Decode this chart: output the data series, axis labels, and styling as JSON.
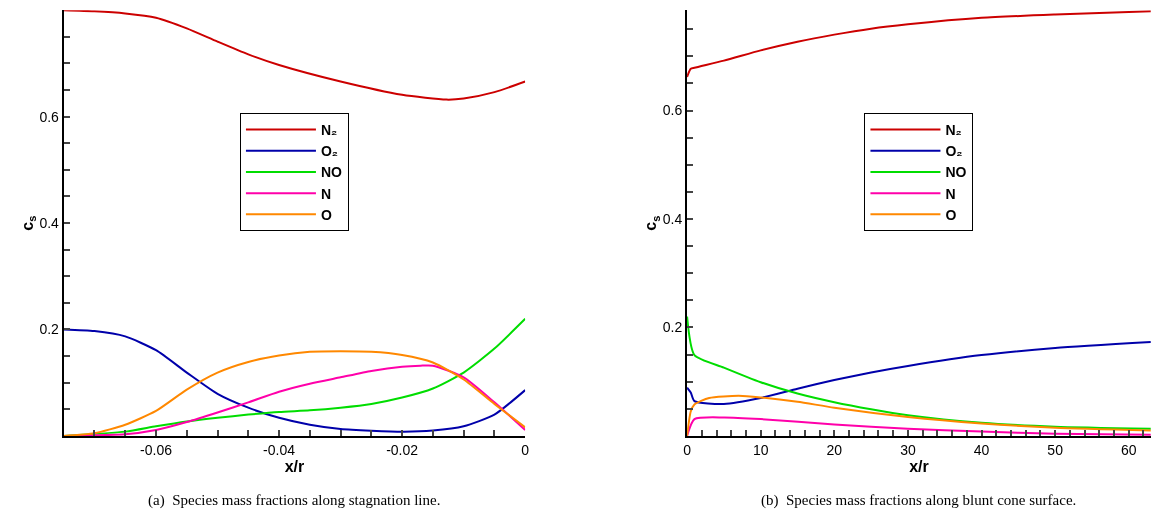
{
  "chart_data": [
    {
      "type": "line",
      "xlabel": "x/r",
      "ylabel": "c$_{s}$",
      "xlim": [
        -0.075,
        0
      ],
      "ylim": [
        0,
        0.8
      ],
      "xticks": [
        {
          "value": -0.075,
          "label": null
        },
        {
          "value": -0.07,
          "label": null
        },
        {
          "value": -0.065,
          "label": null
        },
        -0.06,
        {
          "value": -0.055,
          "label": null
        },
        {
          "value": -0.05,
          "label": null
        },
        {
          "value": -0.045,
          "label": null
        },
        -0.04,
        {
          "value": -0.035,
          "label": null
        },
        {
          "value": -0.03,
          "label": null
        },
        {
          "value": -0.025,
          "label": null
        },
        -0.02,
        {
          "value": -0.015,
          "label": null
        },
        {
          "value": -0.01,
          "label": null
        },
        {
          "value": -0.005,
          "label": null
        },
        0
      ],
      "yticks": [
        {
          "value": 0.05,
          "label": null
        },
        {
          "value": 0.1,
          "label": null
        },
        {
          "value": 0.15,
          "label": null
        },
        0.2,
        {
          "value": 0.25,
          "label": null
        },
        {
          "value": 0.3,
          "label": null
        },
        {
          "value": 0.35,
          "label": null
        },
        0.4,
        {
          "value": 0.45,
          "label": null
        },
        {
          "value": 0.5,
          "label": null
        },
        {
          "value": 0.55,
          "label": null
        },
        0.6,
        {
          "value": 0.65,
          "label": null
        },
        {
          "value": 0.7,
          "label": null
        },
        {
          "value": 0.75,
          "label": null
        }
      ],
      "legend": "center",
      "marker": "none",
      "line_style": "solid",
      "annotations": [
        "(a)  Species mass fractions along stagnation line."
      ],
      "series": [
        {
          "name": "N₂",
          "color": "#cc0000",
          "x": [
            -0.075,
            -0.07,
            -0.065,
            -0.06,
            -0.055,
            -0.05,
            -0.045,
            -0.04,
            -0.03,
            -0.02,
            -0.0128,
            -0.01,
            -0.005,
            0
          ],
          "values": [
            0.8,
            0.798,
            0.794,
            0.786,
            0.766,
            0.741,
            0.717,
            0.697,
            0.666,
            0.641,
            0.632,
            0.634,
            0.646,
            0.666
          ]
        },
        {
          "name": "O₂",
          "color": "#0000aa",
          "x": [
            -0.075,
            -0.07,
            -0.065,
            -0.06,
            -0.055,
            -0.05,
            -0.045,
            -0.04,
            -0.035,
            -0.03,
            -0.02,
            -0.015,
            -0.01,
            -0.005,
            0
          ],
          "values": [
            0.2,
            0.197,
            0.187,
            0.161,
            0.119,
            0.079,
            0.053,
            0.034,
            0.021,
            0.013,
            0.008,
            0.01,
            0.018,
            0.04,
            0.086
          ]
        },
        {
          "name": "NO",
          "color": "#00dd00",
          "x": [
            -0.075,
            -0.065,
            -0.06,
            -0.055,
            -0.05,
            -0.045,
            -0.04,
            -0.035,
            -0.03,
            -0.025,
            -0.02,
            -0.015,
            -0.01,
            -0.005,
            0
          ],
          "values": [
            0,
            0.008,
            0.018,
            0.027,
            0.034,
            0.04,
            0.045,
            0.048,
            0.053,
            0.06,
            0.072,
            0.089,
            0.119,
            0.164,
            0.22
          ]
        },
        {
          "name": "N",
          "color": "#ff00aa",
          "x": [
            -0.075,
            -0.065,
            -0.06,
            -0.055,
            -0.05,
            -0.045,
            -0.04,
            -0.035,
            -0.03,
            -0.025,
            -0.02,
            -0.017,
            -0.015,
            -0.01,
            -0.005,
            0
          ],
          "values": [
            0,
            0.003,
            0.011,
            0.026,
            0.044,
            0.063,
            0.083,
            0.098,
            0.11,
            0.122,
            0.13,
            0.132,
            0.132,
            0.11,
            0.063,
            0.011
          ]
        },
        {
          "name": "O",
          "color": "#ff8800",
          "x": [
            -0.075,
            -0.07,
            -0.065,
            -0.06,
            -0.055,
            -0.05,
            -0.045,
            -0.04,
            -0.035,
            -0.03,
            -0.025,
            -0.02,
            -0.015,
            -0.01,
            -0.005,
            0
          ],
          "values": [
            0,
            0.005,
            0.021,
            0.047,
            0.087,
            0.119,
            0.139,
            0.151,
            0.158,
            0.159,
            0.158,
            0.152,
            0.138,
            0.106,
            0.06,
            0.016
          ]
        }
      ]
    },
    {
      "type": "line",
      "xlabel": "x/r",
      "ylabel": "c$_{s}$",
      "xlim": [
        0,
        63
      ],
      "ylim": [
        0,
        0.785
      ],
      "xticks": [
        0,
        {
          "value": 2,
          "label": null
        },
        {
          "value": 4,
          "label": null
        },
        {
          "value": 6,
          "label": null
        },
        {
          "value": 8,
          "label": null
        },
        10,
        {
          "value": 12,
          "label": null
        },
        {
          "value": 14,
          "label": null
        },
        {
          "value": 16,
          "label": null
        },
        {
          "value": 18,
          "label": null
        },
        20,
        {
          "value": 22,
          "label": null
        },
        {
          "value": 24,
          "label": null
        },
        {
          "value": 26,
          "label": null
        },
        {
          "value": 28,
          "label": null
        },
        30,
        {
          "value": 32,
          "label": null
        },
        {
          "value": 34,
          "label": null
        },
        {
          "value": 36,
          "label": null
        },
        {
          "value": 38,
          "label": null
        },
        40,
        {
          "value": 42,
          "label": null
        },
        {
          "value": 44,
          "label": null
        },
        {
          "value": 46,
          "label": null
        },
        {
          "value": 48,
          "label": null
        },
        50,
        {
          "value": 52,
          "label": null
        },
        {
          "value": 54,
          "label": null
        },
        {
          "value": 56,
          "label": null
        },
        {
          "value": 58,
          "label": null
        },
        60,
        {
          "value": 62,
          "label": null
        }
      ],
      "yticks": [
        {
          "value": 0.05,
          "label": null
        },
        {
          "value": 0.1,
          "label": null
        },
        {
          "value": 0.15,
          "label": null
        },
        0.2,
        {
          "value": 0.25,
          "label": null
        },
        {
          "value": 0.3,
          "label": null
        },
        {
          "value": 0.35,
          "label": null
        },
        0.4,
        {
          "value": 0.45,
          "label": null
        },
        {
          "value": 0.5,
          "label": null
        },
        {
          "value": 0.55,
          "label": null
        },
        0.6,
        {
          "value": 0.65,
          "label": null
        },
        {
          "value": 0.7,
          "label": null
        },
        {
          "value": 0.75,
          "label": null
        }
      ],
      "legend": "center",
      "marker": "none",
      "line_style": "solid",
      "annotations": [
        "(b)  Species mass fractions along blunt cone surface."
      ],
      "series": [
        {
          "name": "N₂",
          "color": "#cc0000",
          "x": [
            0,
            0.5,
            1,
            5,
            10,
            15,
            20,
            25,
            30,
            40,
            50,
            63
          ],
          "values": [
            0.662,
            0.677,
            0.679,
            0.692,
            0.711,
            0.727,
            0.74,
            0.751,
            0.759,
            0.771,
            0.777,
            0.783
          ]
        },
        {
          "name": "O₂",
          "color": "#0000aa",
          "x": [
            0,
            0.5,
            1,
            5,
            10,
            15,
            20,
            25,
            30,
            40,
            50,
            63
          ],
          "values": [
            0.089,
            0.08,
            0.064,
            0.059,
            0.07,
            0.087,
            0.103,
            0.117,
            0.129,
            0.149,
            0.162,
            0.173
          ]
        },
        {
          "name": "NO",
          "color": "#00dd00",
          "x": [
            0,
            1,
            5,
            10,
            15,
            20,
            25,
            30,
            40,
            50,
            63
          ],
          "values": [
            0.22,
            0.149,
            0.126,
            0.099,
            0.078,
            0.062,
            0.049,
            0.038,
            0.024,
            0.017,
            0.013
          ]
        },
        {
          "name": "N",
          "color": "#ff00aa",
          "x": [
            0,
            1,
            5,
            10,
            20,
            30,
            40,
            50,
            63
          ],
          "values": [
            0,
            0.031,
            0.034,
            0.031,
            0.021,
            0.013,
            0.008,
            0.004,
            0.002
          ]
        },
        {
          "name": "O",
          "color": "#ff8800",
          "x": [
            0,
            0.5,
            1,
            3,
            7,
            10,
            15,
            20,
            30,
            40,
            50,
            63
          ],
          "values": [
            0,
            0.045,
            0.058,
            0.07,
            0.074,
            0.071,
            0.063,
            0.052,
            0.035,
            0.023,
            0.015,
            0.01
          ]
        }
      ]
    }
  ]
}
